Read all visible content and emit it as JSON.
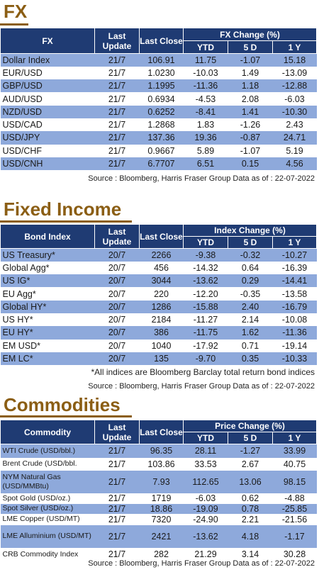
{
  "fx": {
    "heading": "FX",
    "headers": {
      "name": "FX",
      "last_update": "Last Update",
      "last_close": "Last Close",
      "group": "FX Change (%)",
      "ytd": "YTD",
      "d5": "5 D",
      "y1": "1 Y"
    },
    "rows": [
      {
        "name": "Dollar Index",
        "update": "21/7",
        "close": "106.91",
        "ytd": "11.75",
        "d5": "-1.07",
        "y1": "15.18"
      },
      {
        "name": "EUR/USD",
        "update": "21/7",
        "close": "1.0230",
        "ytd": "-10.03",
        "d5": "1.49",
        "y1": "-13.09"
      },
      {
        "name": "GBP/USD",
        "update": "21/7",
        "close": "1.1995",
        "ytd": "-11.36",
        "d5": "1.18",
        "y1": "-12.88"
      },
      {
        "name": "AUD/USD",
        "update": "21/7",
        "close": "0.6934",
        "ytd": "-4.53",
        "d5": "2.08",
        "y1": "-6.03"
      },
      {
        "name": "NZD/USD",
        "update": "21/7",
        "close": "0.6252",
        "ytd": "-8.41",
        "d5": "1.41",
        "y1": "-10.30"
      },
      {
        "name": "USD/CAD",
        "update": "21/7",
        "close": "1.2868",
        "ytd": "1.83",
        "d5": "-1.26",
        "y1": "2.43"
      },
      {
        "name": "USD/JPY",
        "update": "21/7",
        "close": "137.36",
        "ytd": "19.36",
        "d5": "-0.87",
        "y1": "24.71"
      },
      {
        "name": "USD/CHF",
        "update": "21/7",
        "close": "0.9667",
        "ytd": "5.89",
        "d5": "-1.07",
        "y1": "5.19"
      },
      {
        "name": "USD/CNH",
        "update": "21/7",
        "close": "6.7707",
        "ytd": "6.51",
        "d5": "0.15",
        "y1": "4.56"
      }
    ],
    "source": "Source : Bloomberg, Harris Fraser Group Data as of : 22-07-2022"
  },
  "fixed_income": {
    "heading": "Fixed Income",
    "headers": {
      "name": "Bond Index",
      "last_update": "Last Update",
      "last_close": "Last Close",
      "group": "Index Change (%)",
      "ytd": "YTD",
      "d5": "5 D",
      "y1": "1 Y"
    },
    "rows": [
      {
        "name": "US Treasury*",
        "update": "20/7",
        "close": "2266",
        "ytd": "-9.38",
        "d5": "-0.32",
        "y1": "-10.27"
      },
      {
        "name": "Global Agg*",
        "update": "20/7",
        "close": "456",
        "ytd": "-14.32",
        "d5": "0.64",
        "y1": "-16.39"
      },
      {
        "name": "US IG*",
        "update": "20/7",
        "close": "3044",
        "ytd": "-13.62",
        "d5": "0.29",
        "y1": "-14.41"
      },
      {
        "name": "EU Agg*",
        "update": "20/7",
        "close": "220",
        "ytd": "-12.20",
        "d5": "-0.35",
        "y1": "-13.58"
      },
      {
        "name": "Global HY*",
        "update": "20/7",
        "close": "1286",
        "ytd": "-15.88",
        "d5": "2.40",
        "y1": "-16.79"
      },
      {
        "name": "US HY*",
        "update": "20/7",
        "close": "2184",
        "ytd": "-11.27",
        "d5": "2.14",
        "y1": "-10.08"
      },
      {
        "name": "EU HY*",
        "update": "20/7",
        "close": "386",
        "ytd": "-11.75",
        "d5": "1.62",
        "y1": "-11.36"
      },
      {
        "name": "EM USD*",
        "update": "20/7",
        "close": "1040",
        "ytd": "-17.92",
        "d5": "0.71",
        "y1": "-19.14"
      },
      {
        "name": "EM LC*",
        "update": "20/7",
        "close": "135",
        "ytd": "-9.70",
        "d5": "0.35",
        "y1": "-10.33"
      }
    ],
    "note": "*All indices are Bloomberg Barclay total return bond indices",
    "source": "Source : Bloomberg, Harris Fraser Group Data as of : 22-07-2022"
  },
  "commodities": {
    "heading": "Commodities",
    "headers": {
      "name": "Commodity",
      "last_update": "Last Update",
      "last_close": "Last Close",
      "group": "Price Change (%)",
      "ytd": "YTD",
      "d5": "5 D",
      "y1": "1 Y"
    },
    "rows": [
      {
        "name": "WTI Crude (USD/bbl.)",
        "update": "21/7",
        "close": "96.35",
        "ytd": "28.11",
        "d5": "-1.27",
        "y1": "33.99"
      },
      {
        "name": "Brent Crude (USD/bbl.",
        "update": "21/7",
        "close": "103.86",
        "ytd": "33.53",
        "d5": "2.67",
        "y1": "40.75"
      },
      {
        "name": "NYM Natural Gas (USD/MMBtu)",
        "update": "21/7",
        "close": "7.93",
        "ytd": "112.65",
        "d5": "13.06",
        "y1": "98.15"
      },
      {
        "name": "Spot Gold (USD/oz.)",
        "update": "21/7",
        "close": "1719",
        "ytd": "-6.03",
        "d5": "0.62",
        "y1": "-4.88"
      },
      {
        "name": "Spot Silver  (USD/oz.)",
        "update": "21/7",
        "close": "18.86",
        "ytd": "-19.09",
        "d5": "0.78",
        "y1": "-25.85"
      },
      {
        "name": "LME Copper  (USD/MT)",
        "update": "21/7",
        "close": "7320",
        "ytd": "-24.90",
        "d5": "2.21",
        "y1": "-21.56"
      },
      {
        "name": "LME Alluminium (USD/MT)",
        "update": "21/7",
        "close": "2421",
        "ytd": "-13.62",
        "d5": "4.18",
        "y1": "-1.17"
      },
      {
        "name": "CRB Commodity Index",
        "update": "21/7",
        "close": "282",
        "ytd": "21.29",
        "d5": "3.14",
        "y1": "30.28"
      }
    ],
    "source": "Source : Bloomberg, Harris Fraser Group Data as of : 22-07-2022"
  }
}
